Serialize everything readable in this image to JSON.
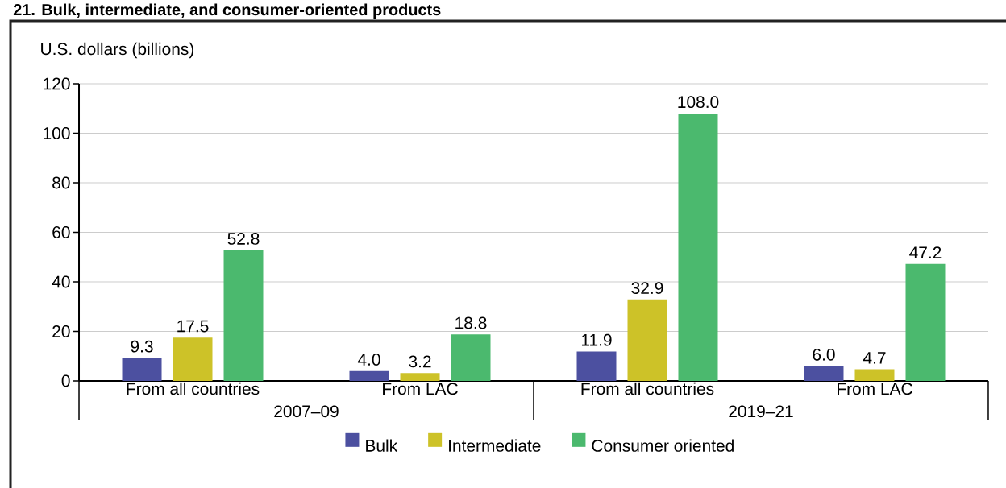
{
  "chart_data": {
    "type": "bar",
    "title": "21. Bulk, intermediate, and consumer-oriented products",
    "ylabel": "U.S. dollars (billions)",
    "categories": [
      "From all countries",
      "From LAC",
      "From all countries",
      "From LAC"
    ],
    "annotations": [
      "2007–09",
      "2019–21"
    ],
    "series": [
      {
        "name": "Bulk",
        "color": "#4c50a0",
        "values": [
          9.3,
          4.0,
          11.9,
          6.0
        ],
        "value_labels": [
          "9.3",
          "4.0",
          "11.9",
          "6.0"
        ]
      },
      {
        "name": "Intermediate",
        "color": "#cdc228",
        "values": [
          17.5,
          3.2,
          32.9,
          4.7
        ],
        "value_labels": [
          "17.5",
          "3.2",
          "32.9",
          "4.7"
        ]
      },
      {
        "name": "Consumer oriented",
        "color": "#4bb96e",
        "values": [
          52.8,
          18.8,
          108.0,
          47.2
        ],
        "value_labels": [
          "52.8",
          "18.8",
          "108.0",
          "47.2"
        ]
      }
    ],
    "ylim": [
      0,
      120
    ],
    "yticks": [
      0,
      20,
      40,
      60,
      80,
      100,
      120
    ],
    "grid": "y",
    "legend": "bottom"
  }
}
